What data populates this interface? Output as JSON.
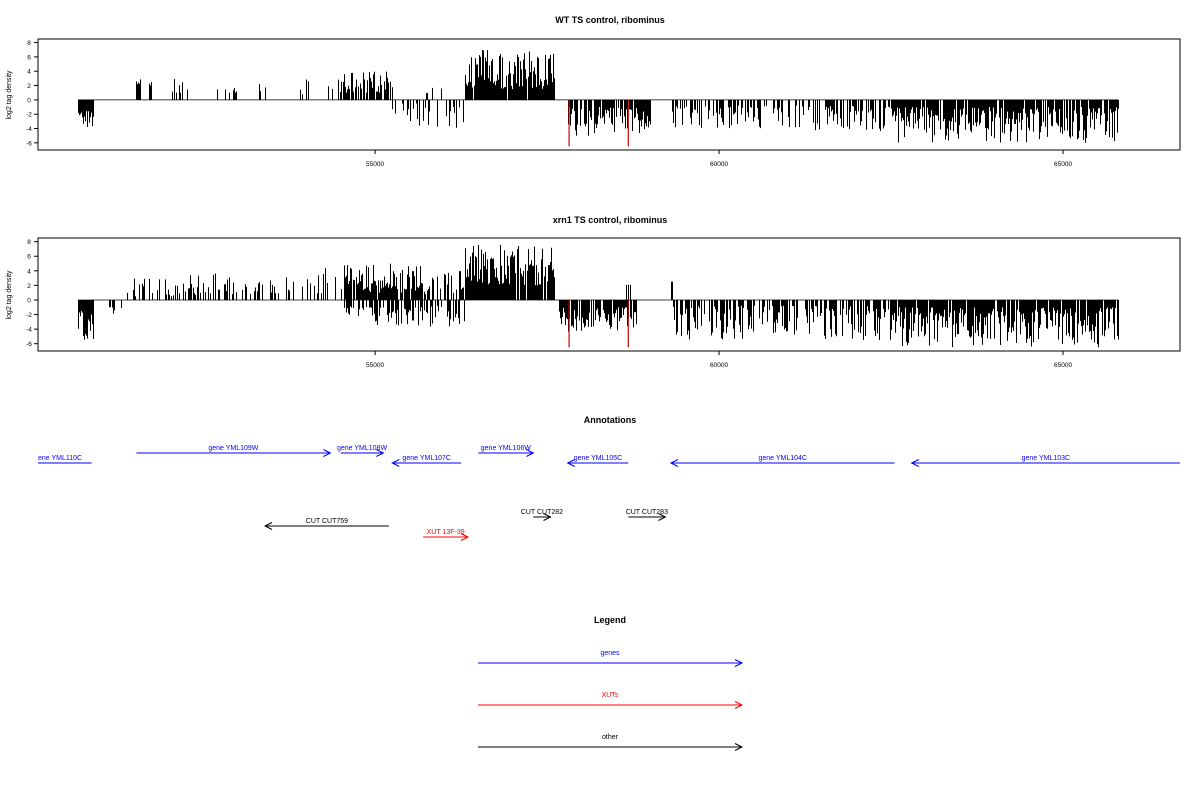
{
  "colors": {
    "genes": "#0000ff",
    "xuts": "#ff0000",
    "other": "#000000",
    "bars": "#000000",
    "marker": "#cc0000"
  },
  "chart_data": [
    {
      "type": "bar",
      "title": "WT TS control, ribominus",
      "ylabel": "log2 tag density",
      "xlim": [
        50100,
        66700
      ],
      "ylim": [
        -7,
        8.5
      ],
      "xticks": [
        55000,
        60000,
        65000
      ],
      "yticks": [
        -6,
        -4,
        -2,
        0,
        2,
        4,
        6,
        8
      ],
      "grid": false,
      "marker_lines": [
        {
          "x": 57820,
          "y": -6.5
        },
        {
          "x": 58680,
          "y": -6.5
        }
      ],
      "segments": [
        {
          "x0": 50680,
          "x1": 50900,
          "sign": -1,
          "min": 1.5,
          "max": 4,
          "density": 0.9
        },
        {
          "x0": 51530,
          "x1": 51580,
          "sign": 1,
          "min": 2,
          "max": 3,
          "density": 1
        },
        {
          "x0": 51720,
          "x1": 51740,
          "sign": 1,
          "min": 2,
          "max": 2.5,
          "density": 1
        },
        {
          "x0": 52000,
          "x1": 52300,
          "sign": 1,
          "min": 1,
          "max": 3,
          "density": 0.3
        },
        {
          "x0": 52700,
          "x1": 53000,
          "sign": 1,
          "min": 0.8,
          "max": 2,
          "density": 0.15
        },
        {
          "x0": 53000,
          "x1": 54000,
          "sign": 1,
          "min": 0.8,
          "max": 2.5,
          "density": 0.12
        },
        {
          "x0": 54000,
          "x1": 54550,
          "sign": 1,
          "min": 0.8,
          "max": 3,
          "density": 0.22
        },
        {
          "x0": 54550,
          "x1": 55250,
          "sign": 1,
          "min": 1,
          "max": 4,
          "density": 0.7
        },
        {
          "x0": 55250,
          "x1": 56300,
          "sign": -1,
          "min": 0.5,
          "max": 4,
          "density": 0.3
        },
        {
          "x0": 55300,
          "x1": 56000,
          "sign": 1,
          "min": 0.8,
          "max": 2,
          "density": 0.1
        },
        {
          "x0": 56300,
          "x1": 57600,
          "sign": 1,
          "min": 1.5,
          "max": 7,
          "density": 0.95
        },
        {
          "x0": 57800,
          "x1": 59000,
          "sign": -1,
          "min": 1,
          "max": 5,
          "density": 0.85
        },
        {
          "x0": 59300,
          "x1": 61000,
          "sign": -1,
          "min": 0.8,
          "max": 4,
          "density": 0.45
        },
        {
          "x0": 61000,
          "x1": 62500,
          "sign": -1,
          "min": 0.8,
          "max": 4.5,
          "density": 0.4
        },
        {
          "x0": 62500,
          "x1": 65800,
          "sign": -1,
          "min": 1,
          "max": 6,
          "density": 0.85
        }
      ]
    },
    {
      "type": "bar",
      "title": "xrn1 TS control, ribominus",
      "ylabel": "log2 tag density",
      "xlim": [
        50100,
        66700
      ],
      "ylim": [
        -7,
        8.5
      ],
      "xticks": [
        55000,
        60000,
        65000
      ],
      "yticks": [
        -6,
        -4,
        -2,
        0,
        2,
        4,
        6,
        8
      ],
      "grid": false,
      "marker_lines": [
        {
          "x": 57820,
          "y": -6.5
        },
        {
          "x": 58680,
          "y": -6.5
        }
      ],
      "segments": [
        {
          "x0": 50680,
          "x1": 50900,
          "sign": -1,
          "min": 1.5,
          "max": 5.5,
          "density": 0.9
        },
        {
          "x0": 51100,
          "x1": 51300,
          "sign": -1,
          "min": 0.8,
          "max": 2,
          "density": 0.3
        },
        {
          "x0": 51400,
          "x1": 52500,
          "sign": 1,
          "min": 0.5,
          "max": 3.5,
          "density": 0.35
        },
        {
          "x0": 52500,
          "x1": 54550,
          "sign": 1,
          "min": 0.8,
          "max": 4.5,
          "density": 0.35
        },
        {
          "x0": 54550,
          "x1": 55650,
          "sign": 1,
          "min": 1,
          "max": 5,
          "density": 0.9
        },
        {
          "x0": 54550,
          "x1": 55650,
          "sign": -1,
          "min": 0.8,
          "max": 3.5,
          "density": 0.6
        },
        {
          "x0": 55650,
          "x1": 56300,
          "sign": 1,
          "min": 0.8,
          "max": 4,
          "density": 0.55
        },
        {
          "x0": 55650,
          "x1": 56300,
          "sign": -1,
          "min": 0.8,
          "max": 4,
          "density": 0.55
        },
        {
          "x0": 56300,
          "x1": 57600,
          "sign": 1,
          "min": 2,
          "max": 7.6,
          "density": 0.95
        },
        {
          "x0": 57650,
          "x1": 58800,
          "sign": -1,
          "min": 1,
          "max": 4.5,
          "density": 0.85
        },
        {
          "x0": 58650,
          "x1": 58700,
          "sign": 1,
          "min": 2,
          "max": 2.2,
          "density": 0.5
        },
        {
          "x0": 59300,
          "x1": 59320,
          "sign": 1,
          "min": 2.5,
          "max": 2.6,
          "density": 1
        },
        {
          "x0": 59300,
          "x1": 62500,
          "sign": -1,
          "min": 0.8,
          "max": 5.5,
          "density": 0.6
        },
        {
          "x0": 62500,
          "x1": 65800,
          "sign": -1,
          "min": 1,
          "max": 6.5,
          "density": 0.9
        }
      ]
    }
  ],
  "annotations": {
    "title": "Annotations",
    "features": [
      {
        "label": "ene YML110C",
        "class": "genes",
        "x0": 50100,
        "x1": 50880,
        "dir": "none",
        "row": 1
      },
      {
        "label": "gene YML109W",
        "class": "genes",
        "x0": 51530,
        "x1": 54350,
        "dir": "right",
        "row": 0
      },
      {
        "label": "gene YML108W",
        "class": "genes",
        "x0": 54500,
        "x1": 55120,
        "dir": "right",
        "row": 0
      },
      {
        "label": "gene YML107C",
        "class": "genes",
        "x0": 55250,
        "x1": 56250,
        "dir": "left",
        "row": 1
      },
      {
        "label": "gene YML106W",
        "class": "genes",
        "x0": 56500,
        "x1": 57300,
        "dir": "right",
        "row": 0
      },
      {
        "label": "gene YML105C",
        "class": "genes",
        "x0": 57800,
        "x1": 58680,
        "dir": "left",
        "row": 1
      },
      {
        "label": "gene YML104C",
        "class": "genes",
        "x0": 59300,
        "x1": 62550,
        "dir": "left",
        "row": 1
      },
      {
        "label": "gene YML103C",
        "class": "genes",
        "x0": 62800,
        "x1": 66700,
        "dir": "left",
        "row": 1
      },
      {
        "label": "CUT CUT759",
        "class": "other",
        "x0": 53400,
        "x1": 55200,
        "dir": "left",
        "row": 2
      },
      {
        "label": "CUT CUT282",
        "class": "other",
        "x0": 57300,
        "x1": 57550,
        "dir": "right",
        "row": 3
      },
      {
        "label": "CUT CUT283",
        "class": "other",
        "x0": 58680,
        "x1": 59220,
        "dir": "right",
        "row": 3
      },
      {
        "label": "XUT 13F-39",
        "class": "xuts",
        "x0": 55700,
        "x1": 56350,
        "dir": "right",
        "row": 4
      }
    ]
  },
  "legend": {
    "title": "Legend",
    "items": [
      {
        "label": "genes",
        "class": "genes"
      },
      {
        "label": "XUTs",
        "class": "xuts"
      },
      {
        "label": "other",
        "class": "other"
      }
    ]
  }
}
